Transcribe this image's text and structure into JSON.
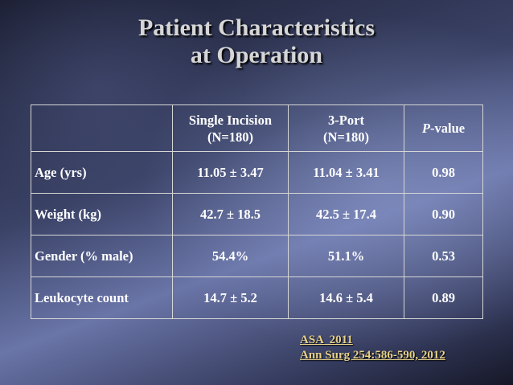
{
  "title": {
    "line1": "Patient Characteristics",
    "line2": "at Operation"
  },
  "table": {
    "headers": {
      "col1": {
        "line1": "Single Incision",
        "line2": "(N=180)"
      },
      "col2": {
        "line1": "3-Port",
        "line2": "(N=180)"
      },
      "col3": {
        "italic": "P",
        "rest": "-value"
      }
    },
    "rows": [
      {
        "label": "Age (yrs)",
        "single": "11.05 ± 3.47",
        "three_port": "11.04 ± 3.41",
        "p": "0.98"
      },
      {
        "label": "Weight (kg)",
        "single": "42.7 ± 18.5",
        "three_port": "42.5 ± 17.4",
        "p": "0.90"
      },
      {
        "label": "Gender (% male)",
        "single": "54.4%",
        "three_port": "51.1%",
        "p": "0.53"
      },
      {
        "label": "Leukocyte count",
        "single": "14.7 ± 5.2",
        "three_port": "14.6 ± 5.4",
        "p": "0.89"
      }
    ]
  },
  "citation": {
    "line1": "ASA  2011",
    "line2": "Ann Surg 254:586-590, 2012"
  },
  "colors": {
    "title": "#d6d6d6",
    "table_text": "#ffffff",
    "citation": "#e7d28a"
  }
}
